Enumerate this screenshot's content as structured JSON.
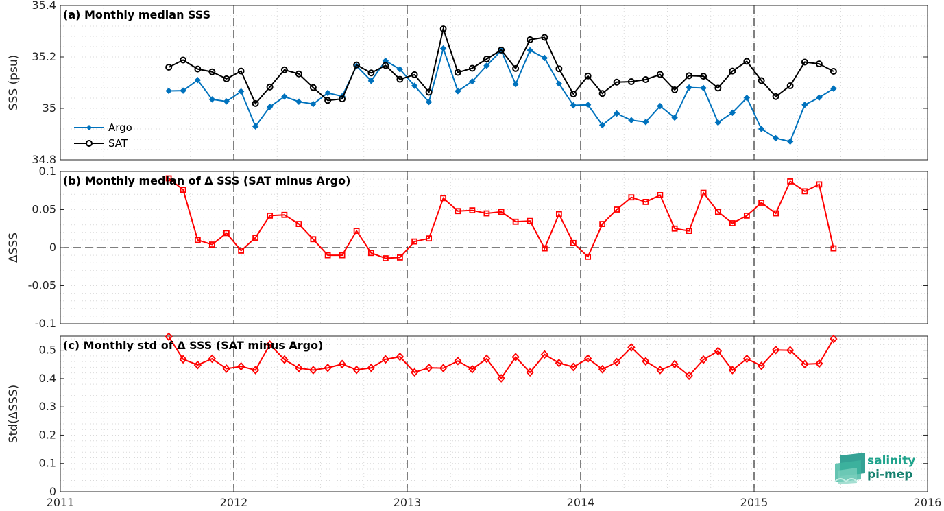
{
  "colors": {
    "argo": "#0072BD",
    "sat": "#000000",
    "delta": "#FF0000",
    "logo": "#1fa38c"
  },
  "logo": {
    "line1": "salinity",
    "line2": "pi-mep"
  },
  "chart_data": [
    {
      "type": "line",
      "title": "(a) Monthly median SSS",
      "ylabel": "SSS (psu)",
      "xlim": [
        2011,
        2016
      ],
      "ylim": [
        34.8,
        35.4
      ],
      "yticks": [
        34.8,
        35,
        35.2,
        35.4
      ],
      "yticklabels": [
        "34.8",
        "35",
        "35.2",
        "35.4"
      ],
      "xticks": [
        2011,
        2012,
        2013,
        2014,
        2015,
        2016
      ],
      "xticklabels": [],
      "grid": true,
      "legend_position": "bottom-left",
      "x": [
        2011.625,
        2011.708,
        2011.792,
        2011.875,
        2011.958,
        2012.042,
        2012.125,
        2012.208,
        2012.292,
        2012.375,
        2012.458,
        2012.542,
        2012.625,
        2012.708,
        2012.792,
        2012.875,
        2012.958,
        2013.042,
        2013.125,
        2013.208,
        2013.292,
        2013.375,
        2013.458,
        2013.542,
        2013.625,
        2013.708,
        2013.792,
        2013.875,
        2013.958,
        2014.042,
        2014.125,
        2014.208,
        2014.292,
        2014.375,
        2014.458,
        2014.542,
        2014.625,
        2014.708,
        2014.792,
        2014.875,
        2014.958,
        2015.042,
        2015.125,
        2015.208,
        2015.292,
        2015.375,
        2015.458
      ],
      "series": [
        {
          "name": "Argo",
          "marker": "diamond-filled",
          "values": [
            35.068,
            35.069,
            35.11,
            35.035,
            35.027,
            35.066,
            34.93,
            35.006,
            35.046,
            35.026,
            35.017,
            35.06,
            35.047,
            35.165,
            35.107,
            35.185,
            35.152,
            35.088,
            35.025,
            35.233,
            35.067,
            35.105,
            35.166,
            35.225,
            35.094,
            35.226,
            35.196,
            35.096,
            35.012,
            35.014,
            34.935,
            34.98,
            34.954,
            34.947,
            35.009,
            34.964,
            35.081,
            35.079,
            34.945,
            34.983,
            35.041,
            34.92,
            34.884,
            34.871,
            35.014,
            35.042,
            35.077
          ]
        },
        {
          "name": "SAT",
          "marker": "circle-open",
          "values": [
            35.16,
            35.188,
            35.153,
            35.142,
            35.115,
            35.145,
            35.019,
            35.083,
            35.15,
            35.134,
            35.081,
            35.031,
            35.037,
            35.169,
            35.138,
            35.167,
            35.113,
            35.131,
            35.063,
            35.309,
            35.14,
            35.156,
            35.192,
            35.227,
            35.155,
            35.267,
            35.276,
            35.154,
            35.056,
            35.126,
            35.058,
            35.102,
            35.104,
            35.112,
            35.132,
            35.072,
            35.127,
            35.125,
            35.079,
            35.145,
            35.183,
            35.108,
            35.046,
            35.088,
            35.18,
            35.173,
            35.144
          ]
        }
      ]
    },
    {
      "type": "line",
      "title": "(b) Monthly median of Δ SSS (SAT minus Argo)",
      "ylabel": "ΔSSS",
      "xlim": [
        2011,
        2016
      ],
      "ylim": [
        -0.1,
        0.1
      ],
      "yticks": [
        -0.1,
        -0.05,
        0,
        0.05,
        0.1
      ],
      "yticklabels": [
        "-0.1",
        "-0.05",
        "0",
        "0.05",
        "0.1"
      ],
      "xticks": [
        2011,
        2012,
        2013,
        2014,
        2015,
        2016
      ],
      "xticklabels": [],
      "grid": true,
      "reference_line": 0,
      "x": [
        2011.625,
        2011.708,
        2011.792,
        2011.875,
        2011.958,
        2012.042,
        2012.125,
        2012.208,
        2012.292,
        2012.375,
        2012.458,
        2012.542,
        2012.625,
        2012.708,
        2012.792,
        2012.875,
        2012.958,
        2013.042,
        2013.125,
        2013.208,
        2013.292,
        2013.375,
        2013.458,
        2013.542,
        2013.625,
        2013.708,
        2013.792,
        2013.875,
        2013.958,
        2014.042,
        2014.125,
        2014.208,
        2014.292,
        2014.375,
        2014.458,
        2014.542,
        2014.625,
        2014.708,
        2014.792,
        2014.875,
        2014.958,
        2015.042,
        2015.125,
        2015.208,
        2015.292,
        2015.375,
        2015.458
      ],
      "series": [
        {
          "name": "",
          "marker": "square-open",
          "values": [
            0.091,
            0.076,
            0.01,
            0.004,
            0.019,
            -0.004,
            0.013,
            0.042,
            0.043,
            0.031,
            0.011,
            -0.01,
            -0.01,
            0.022,
            -0.007,
            -0.014,
            -0.013,
            0.008,
            0.012,
            0.065,
            0.048,
            0.049,
            0.045,
            0.047,
            0.034,
            0.035,
            -0.001,
            0.044,
            0.006,
            -0.012,
            0.031,
            0.05,
            0.066,
            0.06,
            0.069,
            0.025,
            0.022,
            0.072,
            0.047,
            0.032,
            0.042,
            0.059,
            0.045,
            0.087,
            0.074,
            0.083,
            -0.001
          ]
        }
      ]
    },
    {
      "type": "line",
      "title": "(c) Monthly std of Δ SSS (SAT minus Argo)",
      "ylabel": "Std(ΔSSS)",
      "xlim": [
        2011,
        2016
      ],
      "ylim": [
        0,
        0.55
      ],
      "yticks": [
        0,
        0.1,
        0.2,
        0.3,
        0.4,
        0.5
      ],
      "yticklabels": [
        "0",
        "0.1",
        "0.2",
        "0.3",
        "0.4",
        "0.5"
      ],
      "xticks": [
        2011,
        2012,
        2013,
        2014,
        2015,
        2016
      ],
      "xticklabels": [
        "2011",
        "2012",
        "2013",
        "2014",
        "2015",
        "2016"
      ],
      "grid": true,
      "x": [
        2011.625,
        2011.708,
        2011.792,
        2011.875,
        2011.958,
        2012.042,
        2012.125,
        2012.208,
        2012.292,
        2012.375,
        2012.458,
        2012.542,
        2012.625,
        2012.708,
        2012.792,
        2012.875,
        2012.958,
        2013.042,
        2013.125,
        2013.208,
        2013.292,
        2013.375,
        2013.458,
        2013.542,
        2013.625,
        2013.708,
        2013.792,
        2013.875,
        2013.958,
        2014.042,
        2014.125,
        2014.208,
        2014.292,
        2014.375,
        2014.458,
        2014.542,
        2014.625,
        2014.708,
        2014.792,
        2014.875,
        2014.958,
        2015.042,
        2015.125,
        2015.208,
        2015.292,
        2015.375,
        2015.458
      ],
      "series": [
        {
          "name": "",
          "marker": "diamond-open",
          "values": [
            0.548,
            0.468,
            0.448,
            0.47,
            0.435,
            0.443,
            0.43,
            0.52,
            0.467,
            0.437,
            0.43,
            0.438,
            0.451,
            0.431,
            0.438,
            0.468,
            0.477,
            0.422,
            0.438,
            0.437,
            0.462,
            0.433,
            0.47,
            0.401,
            0.476,
            0.422,
            0.485,
            0.455,
            0.441,
            0.471,
            0.433,
            0.458,
            0.51,
            0.461,
            0.43,
            0.451,
            0.41,
            0.467,
            0.497,
            0.43,
            0.47,
            0.445,
            0.501,
            0.5,
            0.451,
            0.453,
            0.54
          ]
        }
      ]
    }
  ]
}
